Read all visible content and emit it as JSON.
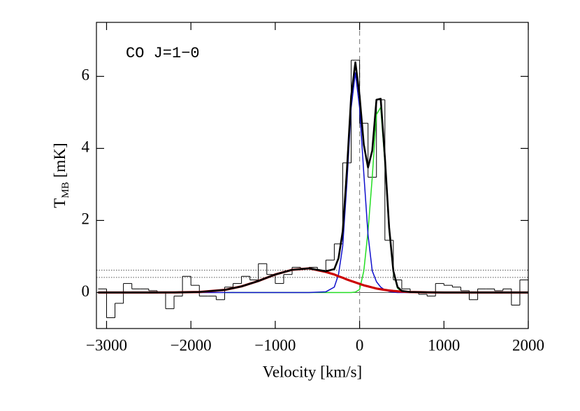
{
  "chart_data": {
    "type": "line",
    "annotation": "CO J=1−0",
    "xlabel": "Velocity [km/s]",
    "ylabel": "T",
    "ylabel_sub": "MB",
    "ylabel_unit": "[mK]",
    "xlim": [
      -3120,
      2000
    ],
    "ylim": [
      -1,
      7.5
    ],
    "xticks": [
      {
        "value": -3000,
        "label": "−3000"
      },
      {
        "value": -2000,
        "label": "−2000"
      },
      {
        "value": -1000,
        "label": "−1000"
      },
      0,
      1000,
      2000
    ],
    "yticks": [
      0,
      2,
      4,
      6
    ],
    "vlines": [
      0
    ],
    "hlines": [
      {
        "value": 0,
        "style": "solid"
      },
      {
        "value": 0.42,
        "style": "dotted"
      },
      {
        "value": 0.62,
        "style": "dotted"
      }
    ],
    "histogram": {
      "color": "#000000",
      "bins": [
        -3100,
        -3000,
        -2900,
        -2800,
        -2700,
        -2600,
        -2500,
        -2400,
        -2300,
        -2200,
        -2100,
        -2000,
        -1900,
        -1800,
        -1700,
        -1600,
        -1500,
        -1400,
        -1300,
        -1200,
        -1100,
        -1000,
        -900,
        -800,
        -700,
        -600,
        -500,
        -400,
        -300,
        -200,
        -100,
        0,
        100,
        200,
        300,
        400,
        500,
        600,
        700,
        800,
        900,
        1000,
        1100,
        1200,
        1300,
        1400,
        1500,
        1600,
        1700,
        1800,
        1900,
        2000
      ],
      "counts": [
        0.1,
        -0.7,
        -0.3,
        0.25,
        0.1,
        0.1,
        0.05,
        0.0,
        -0.45,
        -0.1,
        0.45,
        0.2,
        -0.1,
        -0.1,
        -0.2,
        0.15,
        0.25,
        0.45,
        0.35,
        0.8,
        0.5,
        0.25,
        0.5,
        0.7,
        0.65,
        0.7,
        0.6,
        0.9,
        1.35,
        3.6,
        6.45,
        4.7,
        3.2,
        5.35,
        1.45,
        0.35,
        0.1,
        0.0,
        -0.05,
        -0.1,
        0.25,
        0.2,
        0.15,
        0.05,
        -0.2,
        0.1,
        0.1,
        0.05,
        0.1,
        -0.35,
        0.35
      ]
    },
    "x": [
      -3100,
      -2800,
      -2500,
      -2200,
      -1900,
      -1600,
      -1400,
      -1200,
      -1000,
      -800,
      -600,
      -400,
      -300,
      -250,
      -200,
      -150,
      -100,
      -50,
      0,
      50,
      100,
      150,
      200,
      250,
      300,
      350,
      400,
      450,
      500,
      600,
      800,
      1000,
      1300,
      1600,
      2000
    ],
    "series": [
      {
        "color": "#22dd22",
        "width": 1.5,
        "values": [
          null,
          null,
          null,
          null,
          null,
          0,
          0,
          0,
          0,
          0,
          0,
          0,
          0,
          0,
          0,
          0,
          0,
          0.012,
          0.085,
          0.6,
          1.7,
          3.2,
          4.94,
          5.14,
          3.61,
          1.72,
          0.55,
          0.12,
          0.02,
          0,
          0,
          0,
          0,
          0,
          0
        ]
      },
      {
        "color": "#1010cc",
        "width": 1.5,
        "values": [
          0,
          0,
          0,
          0,
          0,
          0,
          0,
          0,
          0,
          0,
          0,
          0.02,
          0.15,
          0.5,
          1.29,
          3.05,
          5.13,
          6.1,
          5.13,
          3.3,
          1.6,
          0.6,
          0.3,
          0.15,
          0.07,
          0.03,
          0.01,
          0,
          0,
          0,
          0,
          0,
          0,
          0,
          0
        ]
      },
      {
        "color": "#cc0000",
        "width": 3.2,
        "values": [
          0,
          0,
          0,
          0.002,
          0.014,
          0.072,
          0.17,
          0.32,
          0.5,
          0.63,
          0.67,
          0.57,
          0.5,
          0.45,
          0.41,
          0.36,
          0.32,
          0.28,
          0.24,
          0.2,
          0.17,
          0.14,
          0.11,
          0.09,
          0.072,
          0.057,
          0.044,
          0.034,
          0.025,
          0.014,
          0.004,
          0,
          0,
          0,
          0
        ]
      },
      {
        "color": "#000000",
        "width": 2.6,
        "values": [
          0,
          0,
          0,
          0.002,
          0.014,
          0.072,
          0.17,
          0.32,
          0.5,
          0.63,
          0.67,
          0.59,
          0.65,
          0.95,
          1.7,
          3.41,
          5.45,
          6.39,
          5.46,
          4.1,
          3.47,
          3.94,
          5.35,
          5.38,
          3.75,
          1.81,
          0.6,
          0.15,
          0.045,
          0.014,
          0.004,
          0,
          0,
          0,
          0
        ]
      }
    ]
  }
}
